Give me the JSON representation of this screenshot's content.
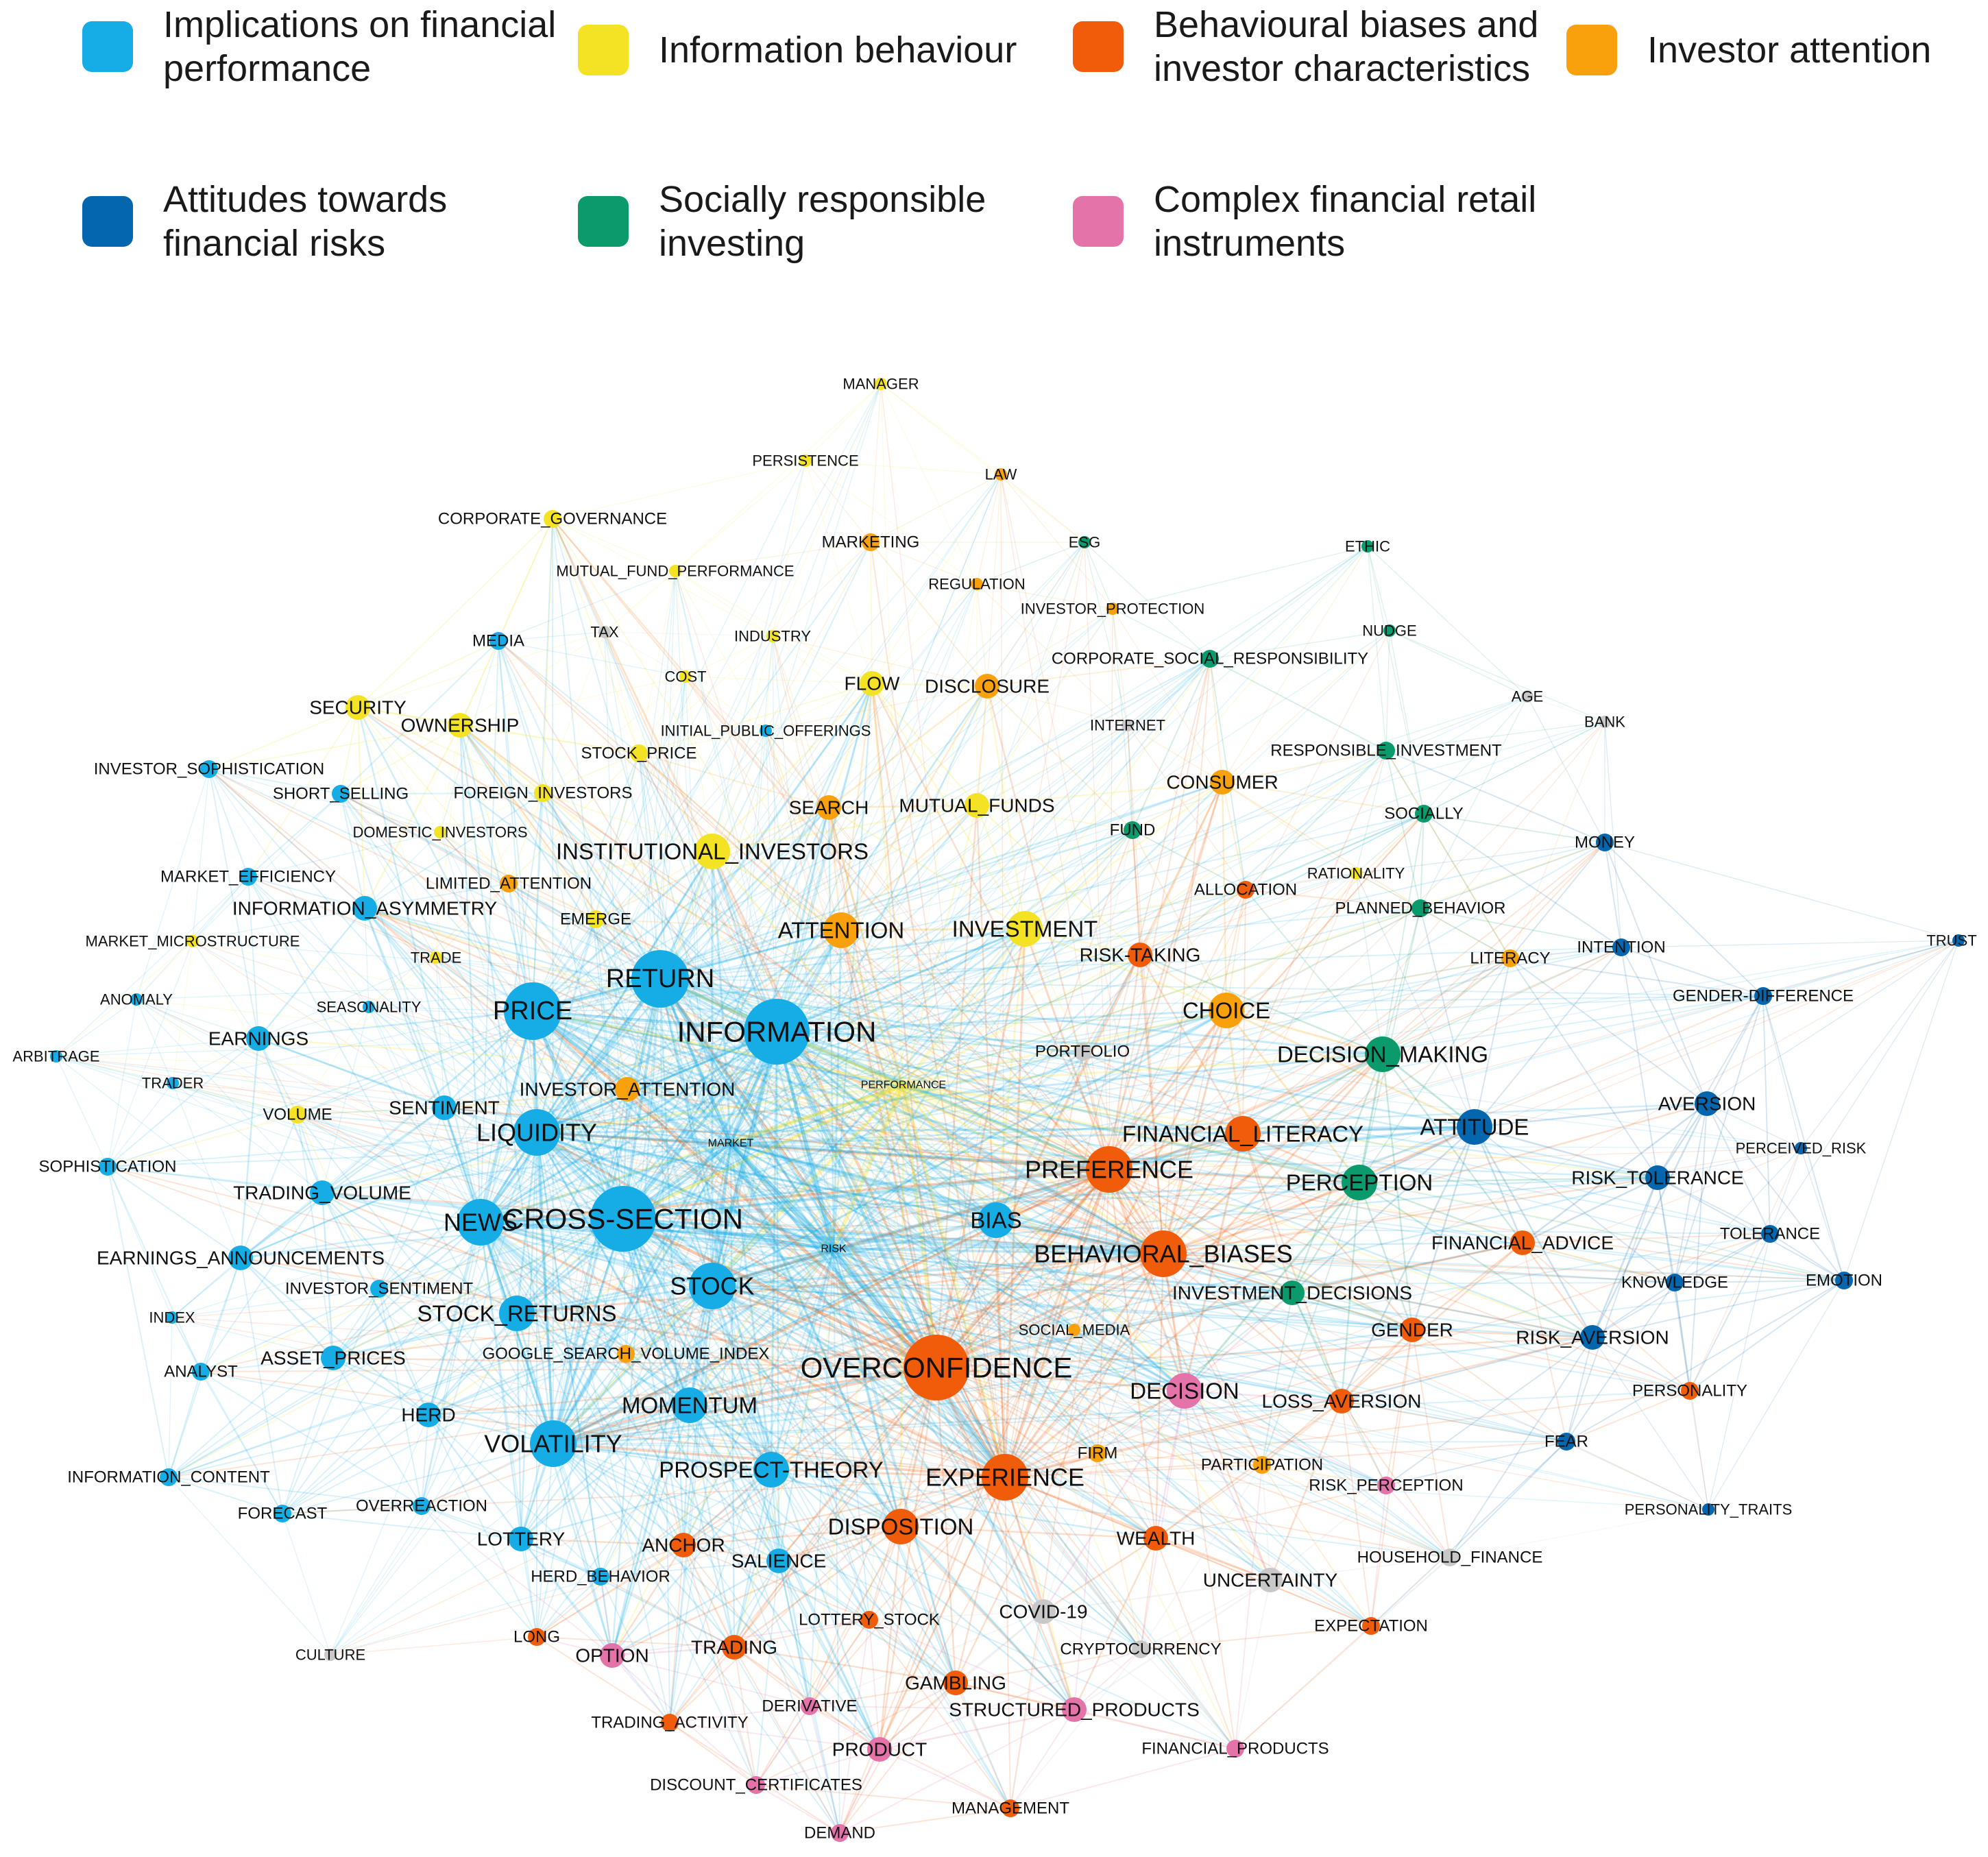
{
  "legend": [
    {
      "label": "Implications on financial performance",
      "color": "#16ace6"
    },
    {
      "label": "Information behaviour",
      "color": "#f4e224"
    },
    {
      "label": "Behavioural biases and investor characteristics",
      "color": "#f15c0a"
    },
    {
      "label": "Investor attention",
      "color": "#f9a10d"
    },
    {
      "label": "Attitudes towards financial risks",
      "color": "#0466ae"
    },
    {
      "label": "Socially responsible investing",
      "color": "#0a9a6c"
    },
    {
      "label": "Complex financial retail instruments",
      "color": "#e473aa"
    }
  ],
  "other_color": "#c8c8c8",
  "nodes": [
    {
      "id": "MANAGER",
      "c": 1,
      "s": 1
    },
    {
      "id": "PERSISTENCE",
      "c": 1,
      "s": 1
    },
    {
      "id": "LAW",
      "c": 3,
      "s": 1
    },
    {
      "id": "CORPORATE_GOVERNANCE",
      "c": 1,
      "s": 2
    },
    {
      "id": "MARKETING",
      "c": 3,
      "s": 2
    },
    {
      "id": "ESG",
      "c": 5,
      "s": 1
    },
    {
      "id": "ETHIC",
      "c": 5,
      "s": 1
    },
    {
      "id": "MUTUAL_FUND_PERFORMANCE",
      "c": 1,
      "s": 1
    },
    {
      "id": "REGULATION",
      "c": 3,
      "s": 1
    },
    {
      "id": "INVESTOR_PROTECTION",
      "c": 3,
      "s": 1
    },
    {
      "id": "MEDIA",
      "c": 0,
      "s": 2
    },
    {
      "id": "TAX",
      "c": -1,
      "s": 1
    },
    {
      "id": "INDUSTRY",
      "c": 1,
      "s": 1
    },
    {
      "id": "NUDGE",
      "c": 5,
      "s": 1
    },
    {
      "id": "CORPORATE_SOCIAL_RESPONSIBILITY",
      "c": 5,
      "s": 2
    },
    {
      "id": "COST",
      "c": 1,
      "s": 1
    },
    {
      "id": "FLOW",
      "c": 1,
      "s": 3
    },
    {
      "id": "DISCLOSURE",
      "c": 3,
      "s": 3
    },
    {
      "id": "AGE",
      "c": -1,
      "s": 1
    },
    {
      "id": "SECURITY",
      "c": 1,
      "s": 3
    },
    {
      "id": "OWNERSHIP",
      "c": 1,
      "s": 3
    },
    {
      "id": "INITIAL_PUBLIC_OFFERINGS",
      "c": 0,
      "s": 1
    },
    {
      "id": "INTERNET",
      "c": -1,
      "s": 1
    },
    {
      "id": "BANK",
      "c": -1,
      "s": 1
    },
    {
      "id": "INVESTOR_SOPHISTICATION",
      "c": 0,
      "s": 2
    },
    {
      "id": "STOCK_PRICE",
      "c": 1,
      "s": 2
    },
    {
      "id": "RESPONSIBLE_INVESTMENT",
      "c": 5,
      "s": 2
    },
    {
      "id": "SHORT_SELLING",
      "c": 0,
      "s": 2
    },
    {
      "id": "FOREIGN_INVESTORS",
      "c": 1,
      "s": 2
    },
    {
      "id": "SEARCH",
      "c": 3,
      "s": 3
    },
    {
      "id": "MUTUAL_FUNDS",
      "c": 1,
      "s": 3
    },
    {
      "id": "CONSUMER",
      "c": 3,
      "s": 3
    },
    {
      "id": "DOMESTIC_INVESTORS",
      "c": 1,
      "s": 1
    },
    {
      "id": "SOCIALLY",
      "c": 5,
      "s": 2
    },
    {
      "id": "FUND",
      "c": 5,
      "s": 2
    },
    {
      "id": "MONEY",
      "c": 4,
      "s": 2
    },
    {
      "id": "INSTITUTIONAL_INVESTORS",
      "c": 1,
      "s": 4
    },
    {
      "id": "MARKET_EFFICIENCY",
      "c": 0,
      "s": 2
    },
    {
      "id": "LIMITED_ATTENTION",
      "c": 3,
      "s": 2
    },
    {
      "id": "RATIONALITY",
      "c": 1,
      "s": 1
    },
    {
      "id": "ALLOCATION",
      "c": 2,
      "s": 2
    },
    {
      "id": "INFORMATION_ASYMMETRY",
      "c": 0,
      "s": 3
    },
    {
      "id": "PLANNED_BEHAVIOR",
      "c": 5,
      "s": 2
    },
    {
      "id": "EMERGE",
      "c": 1,
      "s": 2
    },
    {
      "id": "ATTENTION",
      "c": 3,
      "s": 4
    },
    {
      "id": "INVESTMENT",
      "c": 1,
      "s": 4
    },
    {
      "id": "MARKET_MICROSTRUCTURE",
      "c": 1,
      "s": 1
    },
    {
      "id": "TRUST",
      "c": 4,
      "s": 1
    },
    {
      "id": "INTENTION",
      "c": 4,
      "s": 2
    },
    {
      "id": "RISK-TAKING",
      "c": 2,
      "s": 3
    },
    {
      "id": "LITERACY",
      "c": 3,
      "s": 2
    },
    {
      "id": "TRADE",
      "c": 1,
      "s": 1
    },
    {
      "id": "RETURN",
      "c": 0,
      "s": 6
    },
    {
      "id": "ANOMALY",
      "c": 0,
      "s": 1
    },
    {
      "id": "SEASONALITY",
      "c": 0,
      "s": 1
    },
    {
      "id": "GENDER-DIFFERENCE",
      "c": 4,
      "s": 2
    },
    {
      "id": "PRICE",
      "c": 0,
      "s": 6
    },
    {
      "id": "CHOICE",
      "c": 3,
      "s": 4
    },
    {
      "id": "ARBITRAGE",
      "c": 0,
      "s": 1
    },
    {
      "id": "EARNINGS",
      "c": 0,
      "s": 3
    },
    {
      "id": "INFORMATION",
      "c": 0,
      "s": 7
    },
    {
      "id": "PORTFOLIO",
      "c": -1,
      "s": 2
    },
    {
      "id": "DECISION_MAKING",
      "c": 5,
      "s": 4
    },
    {
      "id": "TRADER",
      "c": 0,
      "s": 1
    },
    {
      "id": "INVESTOR_ATTENTION",
      "c": 3,
      "s": 3
    },
    {
      "id": "PERFORMANCE",
      "c": 1,
      "s": 8
    },
    {
      "id": "AVERSION",
      "c": 4,
      "s": 3
    },
    {
      "id": "SENTIMENT",
      "c": 0,
      "s": 3
    },
    {
      "id": "VOLUME",
      "c": 1,
      "s": 2
    },
    {
      "id": "LIQUIDITY",
      "c": 0,
      "s": 5
    },
    {
      "id": "ATTITUDE",
      "c": 4,
      "s": 4
    },
    {
      "id": "FINANCIAL_LITERACY",
      "c": 2,
      "s": 4
    },
    {
      "id": "MARKET",
      "c": 0,
      "s": 8
    },
    {
      "id": "PERCEIVED_RISK",
      "c": 4,
      "s": 1
    },
    {
      "id": "SOPHISTICATION",
      "c": 0,
      "s": 2
    },
    {
      "id": "PREFERENCE",
      "c": 2,
      "s": 5
    },
    {
      "id": "RISK_TOLERANCE",
      "c": 4,
      "s": 3
    },
    {
      "id": "PERCEPTION",
      "c": 5,
      "s": 4
    },
    {
      "id": "TRADING_VOLUME",
      "c": 0,
      "s": 3
    },
    {
      "id": "CROSS-SECTION",
      "c": 0,
      "s": 7
    },
    {
      "id": "NEWS",
      "c": 0,
      "s": 5
    },
    {
      "id": "BIAS",
      "c": 0,
      "s": 4
    },
    {
      "id": "RISK",
      "c": 0,
      "s": 8
    },
    {
      "id": "TOLERANCE",
      "c": 4,
      "s": 2
    },
    {
      "id": "FINANCIAL_ADVICE",
      "c": 2,
      "s": 3
    },
    {
      "id": "EARNINGS_ANNOUNCEMENTS",
      "c": 0,
      "s": 3
    },
    {
      "id": "BEHAVIORAL_BIASES",
      "c": 2,
      "s": 5
    },
    {
      "id": "STOCK",
      "c": 0,
      "s": 5
    },
    {
      "id": "INVESTMENT_DECISIONS",
      "c": 5,
      "s": 3
    },
    {
      "id": "KNOWLEDGE",
      "c": 4,
      "s": 2
    },
    {
      "id": "EMOTION",
      "c": 4,
      "s": 2
    },
    {
      "id": "INVESTOR_SENTIMENT",
      "c": 0,
      "s": 2
    },
    {
      "id": "INDEX",
      "c": 0,
      "s": 1
    },
    {
      "id": "STOCK_RETURNS",
      "c": 0,
      "s": 4
    },
    {
      "id": "GENDER",
      "c": 2,
      "s": 3
    },
    {
      "id": "SOCIAL_MEDIA",
      "c": 3,
      "s": 1
    },
    {
      "id": "RISK_AVERSION",
      "c": 4,
      "s": 3
    },
    {
      "id": "GOOGLE_SEARCH_VOLUME_INDEX",
      "c": 3,
      "s": 2
    },
    {
      "id": "ASSET_PRICES",
      "c": 0,
      "s": 3
    },
    {
      "id": "ANALYST",
      "c": 0,
      "s": 2
    },
    {
      "id": "OVERCONFIDENCE",
      "c": 2,
      "s": 7
    },
    {
      "id": "DECISION",
      "c": 6,
      "s": 4
    },
    {
      "id": "PERSONALITY",
      "c": 2,
      "s": 2
    },
    {
      "id": "LOSS_AVERSION",
      "c": 2,
      "s": 3
    },
    {
      "id": "HERD",
      "c": 0,
      "s": 3
    },
    {
      "id": "MOMENTUM",
      "c": 0,
      "s": 4
    },
    {
      "id": "VOLATILITY",
      "c": 0,
      "s": 5
    },
    {
      "id": "FEAR",
      "c": 4,
      "s": 2
    },
    {
      "id": "FIRM",
      "c": 3,
      "s": 2
    },
    {
      "id": "PARTICIPATION",
      "c": 3,
      "s": 2
    },
    {
      "id": "INFORMATION_CONTENT",
      "c": 0,
      "s": 2
    },
    {
      "id": "PROSPECT-THEORY",
      "c": 0,
      "s": 4
    },
    {
      "id": "EXPERIENCE",
      "c": 2,
      "s": 5
    },
    {
      "id": "RISK_PERCEPTION",
      "c": 6,
      "s": 2
    },
    {
      "id": "PERSONALITY_TRAITS",
      "c": 4,
      "s": 1
    },
    {
      "id": "FORECAST",
      "c": 0,
      "s": 2
    },
    {
      "id": "OVERREACTION",
      "c": 0,
      "s": 2
    },
    {
      "id": "DISPOSITION",
      "c": 2,
      "s": 4
    },
    {
      "id": "WEALTH",
      "c": 2,
      "s": 3
    },
    {
      "id": "ANCHOR",
      "c": 2,
      "s": 3
    },
    {
      "id": "LOTTERY",
      "c": 0,
      "s": 3
    },
    {
      "id": "HOUSEHOLD_FINANCE",
      "c": -1,
      "s": 2
    },
    {
      "id": "SALIENCE",
      "c": 0,
      "s": 3
    },
    {
      "id": "HERD_BEHAVIOR",
      "c": 0,
      "s": 2
    },
    {
      "id": "UNCERTAINTY",
      "c": -1,
      "s": 3
    },
    {
      "id": "COVID-19",
      "c": -1,
      "s": 3
    },
    {
      "id": "LOTTERY_STOCK",
      "c": 2,
      "s": 2
    },
    {
      "id": "EXPECTATION",
      "c": 2,
      "s": 2
    },
    {
      "id": "CULTURE",
      "c": -1,
      "s": 1
    },
    {
      "id": "LONG",
      "c": 2,
      "s": 2
    },
    {
      "id": "OPTION",
      "c": 6,
      "s": 3
    },
    {
      "id": "TRADING",
      "c": 2,
      "s": 3
    },
    {
      "id": "CRYPTOCURRENCY",
      "c": -1,
      "s": 2
    },
    {
      "id": "GAMBLING",
      "c": 2,
      "s": 3
    },
    {
      "id": "DERIVATIVE",
      "c": 6,
      "s": 2
    },
    {
      "id": "STRUCTURED_PRODUCTS",
      "c": 6,
      "s": 3
    },
    {
      "id": "TRADING_ACTIVITY",
      "c": 2,
      "s": 2
    },
    {
      "id": "PRODUCT",
      "c": 6,
      "s": 3
    },
    {
      "id": "FINANCIAL_PRODUCTS",
      "c": 6,
      "s": 2
    },
    {
      "id": "DISCOUNT_CERTIFICATES",
      "c": 6,
      "s": 2
    },
    {
      "id": "MANAGEMENT",
      "c": 2,
      "s": 2
    },
    {
      "id": "DEMAND",
      "c": 6,
      "s": 2
    }
  ]
}
